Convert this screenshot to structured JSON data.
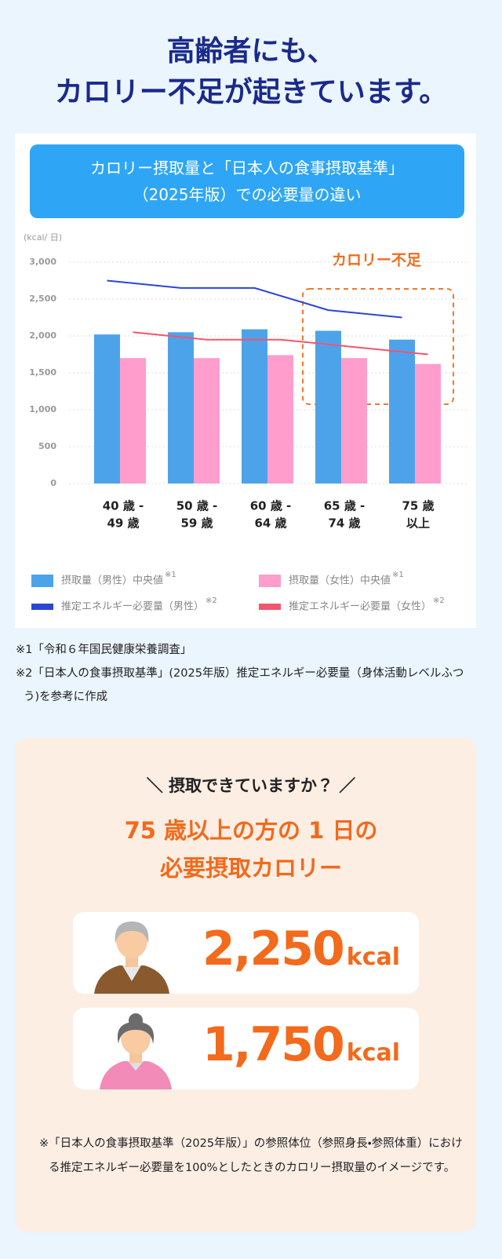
{
  "header": {
    "title_lines": [
      "高齢者にも、",
      "カロリー不足が起きています。"
    ]
  },
  "chart_data": {
    "type": "bar",
    "title": [
      "カロリー摂取量と「日本人の食事摂取基準」",
      "（2025年版）での必要量の違い"
    ],
    "y_label": "(kcal/ 日)",
    "categories": [
      [
        "40 歳 -",
        "49 歳"
      ],
      [
        "50 歳 -",
        "59 歳"
      ],
      [
        "60 歳 -",
        "64 歳"
      ],
      [
        "65 歳 -",
        "74 歳"
      ],
      [
        "75 歳",
        "以上"
      ]
    ],
    "series": [
      {
        "name": "摂取量（男性）中央値",
        "note": "※1",
        "type": "bar",
        "color": "#4da3ea",
        "values": [
          2020,
          2050,
          2090,
          2070,
          1950
        ]
      },
      {
        "name": "摂取量（女性）中央値",
        "note": "※1",
        "type": "bar",
        "color": "#ff9dcc",
        "values": [
          1700,
          1700,
          1740,
          1700,
          1620
        ]
      },
      {
        "name": "推定エネルギー必要量（男性）",
        "note": "※2",
        "type": "line",
        "color": "#2a45d6",
        "values": [
          2750,
          2650,
          2650,
          2350,
          2250
        ]
      },
      {
        "name": "推定エネルギー必要量（女性）",
        "note": "※2",
        "type": "line",
        "color": "#f2556e",
        "values": [
          2050,
          1950,
          1950,
          1850,
          1750
        ]
      }
    ],
    "ylim": [
      0,
      3000
    ],
    "yticks": [
      0,
      500,
      {
        "value": 1000,
        "label": "1,000"
      },
      {
        "value": 1500,
        "label": "1,500"
      },
      {
        "value": 2000,
        "label": "2,000"
      },
      {
        "value": 2500,
        "label": "2,500"
      },
      {
        "value": 3000,
        "label": "3,000"
      }
    ],
    "grid": true,
    "annotation": "カロリー不足"
  },
  "footnotes": [
    "※1「令和６年国民健康栄養調査」",
    "※2「日本人の食事摂取基準」(2025年版）推定エネルギー必要量（身体活動レベルふつう)を参考に作成"
  ],
  "check": {
    "prompt": "＼ 摂取できていますか？ ／",
    "heading_lines": [
      "75 歳以上の方の 1 日の",
      "必要摂取カロリー"
    ],
    "items": [
      {
        "amount": "2,250",
        "unit": "kcal"
      },
      {
        "amount": "1,750",
        "unit": "kcal"
      }
    ],
    "note": "※「日本人の食事摂取基準（2025年版）」の参照体位（参照身長・参照体重）における推定エネルギー必要量を100%としたときのカロリー摂取量のイメージです。"
  }
}
